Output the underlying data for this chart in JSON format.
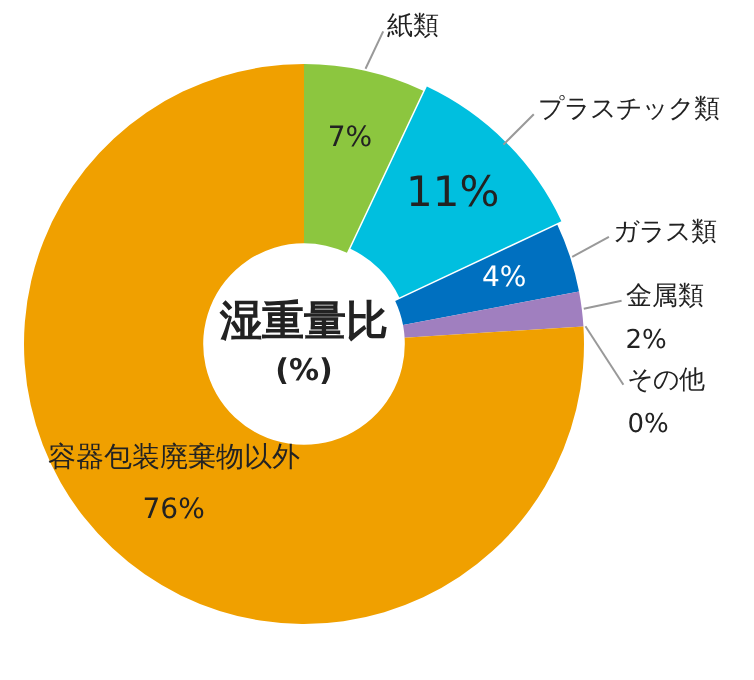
{
  "chart_data": {
    "type": "donut",
    "title": "湿重量比",
    "subtitle": "(%)",
    "categories": [
      "紙類",
      "プラスチック類",
      "ガラス類",
      "金属類",
      "その他",
      "容器包装廃棄物以外"
    ],
    "values": [
      7,
      11,
      4,
      2,
      0,
      76
    ],
    "colors": [
      "#8cc63f",
      "#00bfdf",
      "#0070c0",
      "#a07fbf",
      "#808080",
      "#f0a000"
    ],
    "value_labels": [
      "7%",
      "11%",
      "4%",
      "2%",
      "0%",
      "76%"
    ]
  }
}
